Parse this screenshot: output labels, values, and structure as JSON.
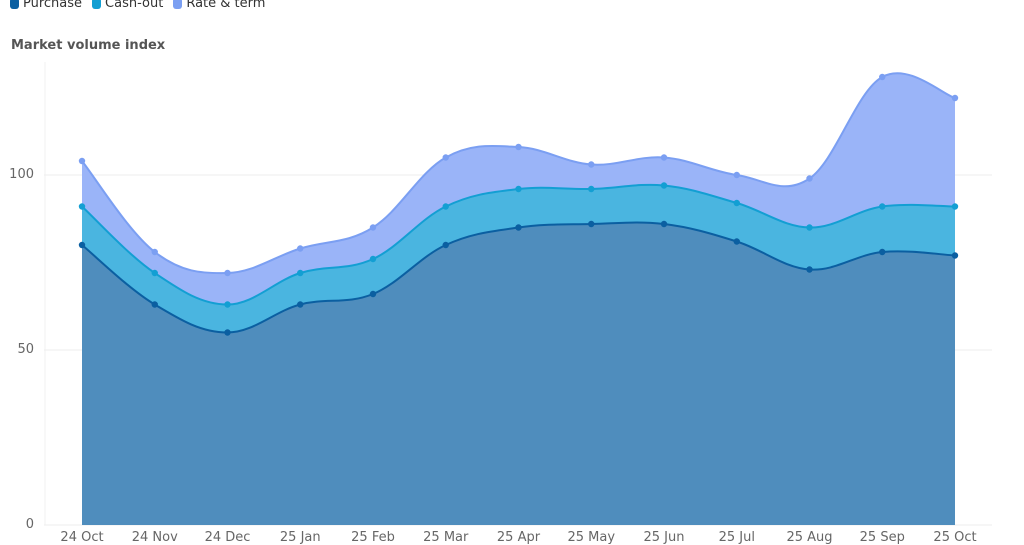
{
  "legend": {
    "items": [
      {
        "label": "Purchase",
        "color": "#0b5fa1"
      },
      {
        "label": "Cash-out",
        "color": "#139fd3"
      },
      {
        "label": "Rate & term",
        "color": "#7b9ff2"
      }
    ]
  },
  "chart_title": "Market volume index",
  "y_ticks": [
    "0",
    "50",
    "100"
  ],
  "x_ticks": [
    "24 Oct",
    "24 Nov",
    "24 Dec",
    "25 Jan",
    "25 Feb",
    "25 Mar",
    "25 Apr",
    "25 May",
    "25 Jun",
    "25 Jul",
    "25 Aug",
    "25 Sep",
    "25 Oct"
  ],
  "chart_data": {
    "type": "area",
    "stacked": true,
    "title": "Market volume index",
    "xlabel": "",
    "ylabel": "",
    "categories": [
      "24 Oct",
      "24 Nov",
      "24 Dec",
      "25 Jan",
      "25 Feb",
      "25 Mar",
      "25 Apr",
      "25 May",
      "25 Jun",
      "25 Jul",
      "25 Aug",
      "25 Sep",
      "25 Oct"
    ],
    "series": [
      {
        "name": "Purchase",
        "color": "#0b5fa1",
        "values": [
          80,
          63,
          55,
          63,
          66,
          80,
          85,
          86,
          86,
          81,
          73,
          78,
          77
        ]
      },
      {
        "name": "Cash-out",
        "color": "#139fd3",
        "values": [
          11,
          9,
          8,
          9,
          10,
          11,
          11,
          10,
          11,
          11,
          12,
          13,
          14
        ]
      },
      {
        "name": "Rate & term",
        "color": "#7b9ff2",
        "values": [
          13,
          6,
          9,
          7,
          9,
          14,
          12,
          7,
          8,
          8,
          14,
          37,
          31
        ]
      }
    ],
    "stacked_totals": {
      "Purchase": [
        80,
        63,
        55,
        63,
        66,
        80,
        85,
        86,
        86,
        81,
        73,
        78,
        77
      ],
      "Cash-out": [
        91,
        72,
        63,
        72,
        76,
        91,
        96,
        96,
        97,
        92,
        85,
        91,
        91
      ],
      "Rate & term": [
        104,
        78,
        72,
        79,
        85,
        105,
        108,
        103,
        105,
        100,
        99,
        128,
        122
      ]
    },
    "ylim": [
      0,
      130
    ],
    "y_ticks": [
      0,
      50,
      100
    ],
    "grid": true,
    "legend_position": "top-left",
    "curve": "smooth"
  }
}
